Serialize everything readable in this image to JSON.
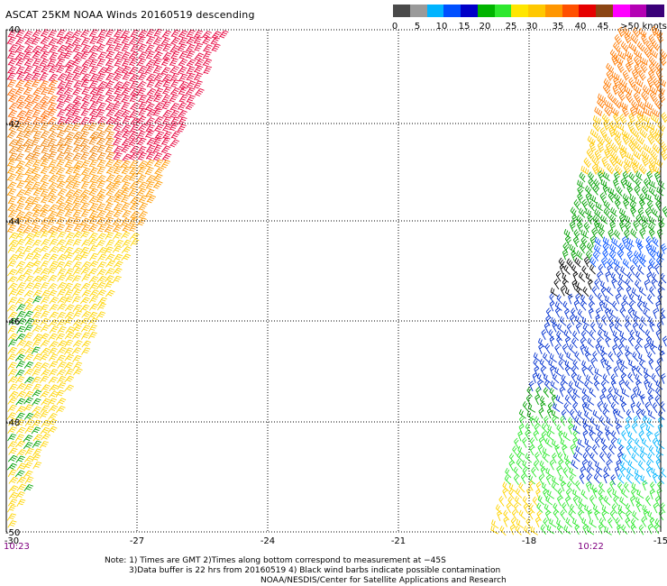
{
  "title": "ASCAT 25KM NOAA Winds 20160519 descending",
  "legend": {
    "colors": [
      "#4a4a4a",
      "#9a9a9a",
      "#00b4ff",
      "#0050ff",
      "#0000c8",
      "#00b400",
      "#2ee82e",
      "#ffe600",
      "#ffc800",
      "#ff9600",
      "#ff5000",
      "#e60000",
      "#8b4513",
      "#ff00ff",
      "#b400b4",
      "#3a0078"
    ],
    "labels": [
      "0",
      "5",
      "10",
      "15",
      "20",
      "25",
      "30",
      "35",
      "40",
      "45",
      ">50 knots"
    ]
  },
  "map": {
    "lon_ticks": [
      "-30",
      "-27",
      "-24",
      "-21",
      "-18",
      "-15"
    ],
    "lat_ticks": [
      "-40",
      "-42",
      "-44",
      "-46",
      "-48",
      "-50"
    ],
    "time_left": "10:23",
    "time_right": "10:22"
  },
  "notes": [
    "Note: 1) Times are GMT 2)Times along bottom correspond to measurement at −45S",
    "3)Data buffer is 22 hrs from 20160519 4) Black wind barbs indicate possible contamination",
    "NOAA/NESDIS/Center for Satellite Applications and Research"
  ]
}
